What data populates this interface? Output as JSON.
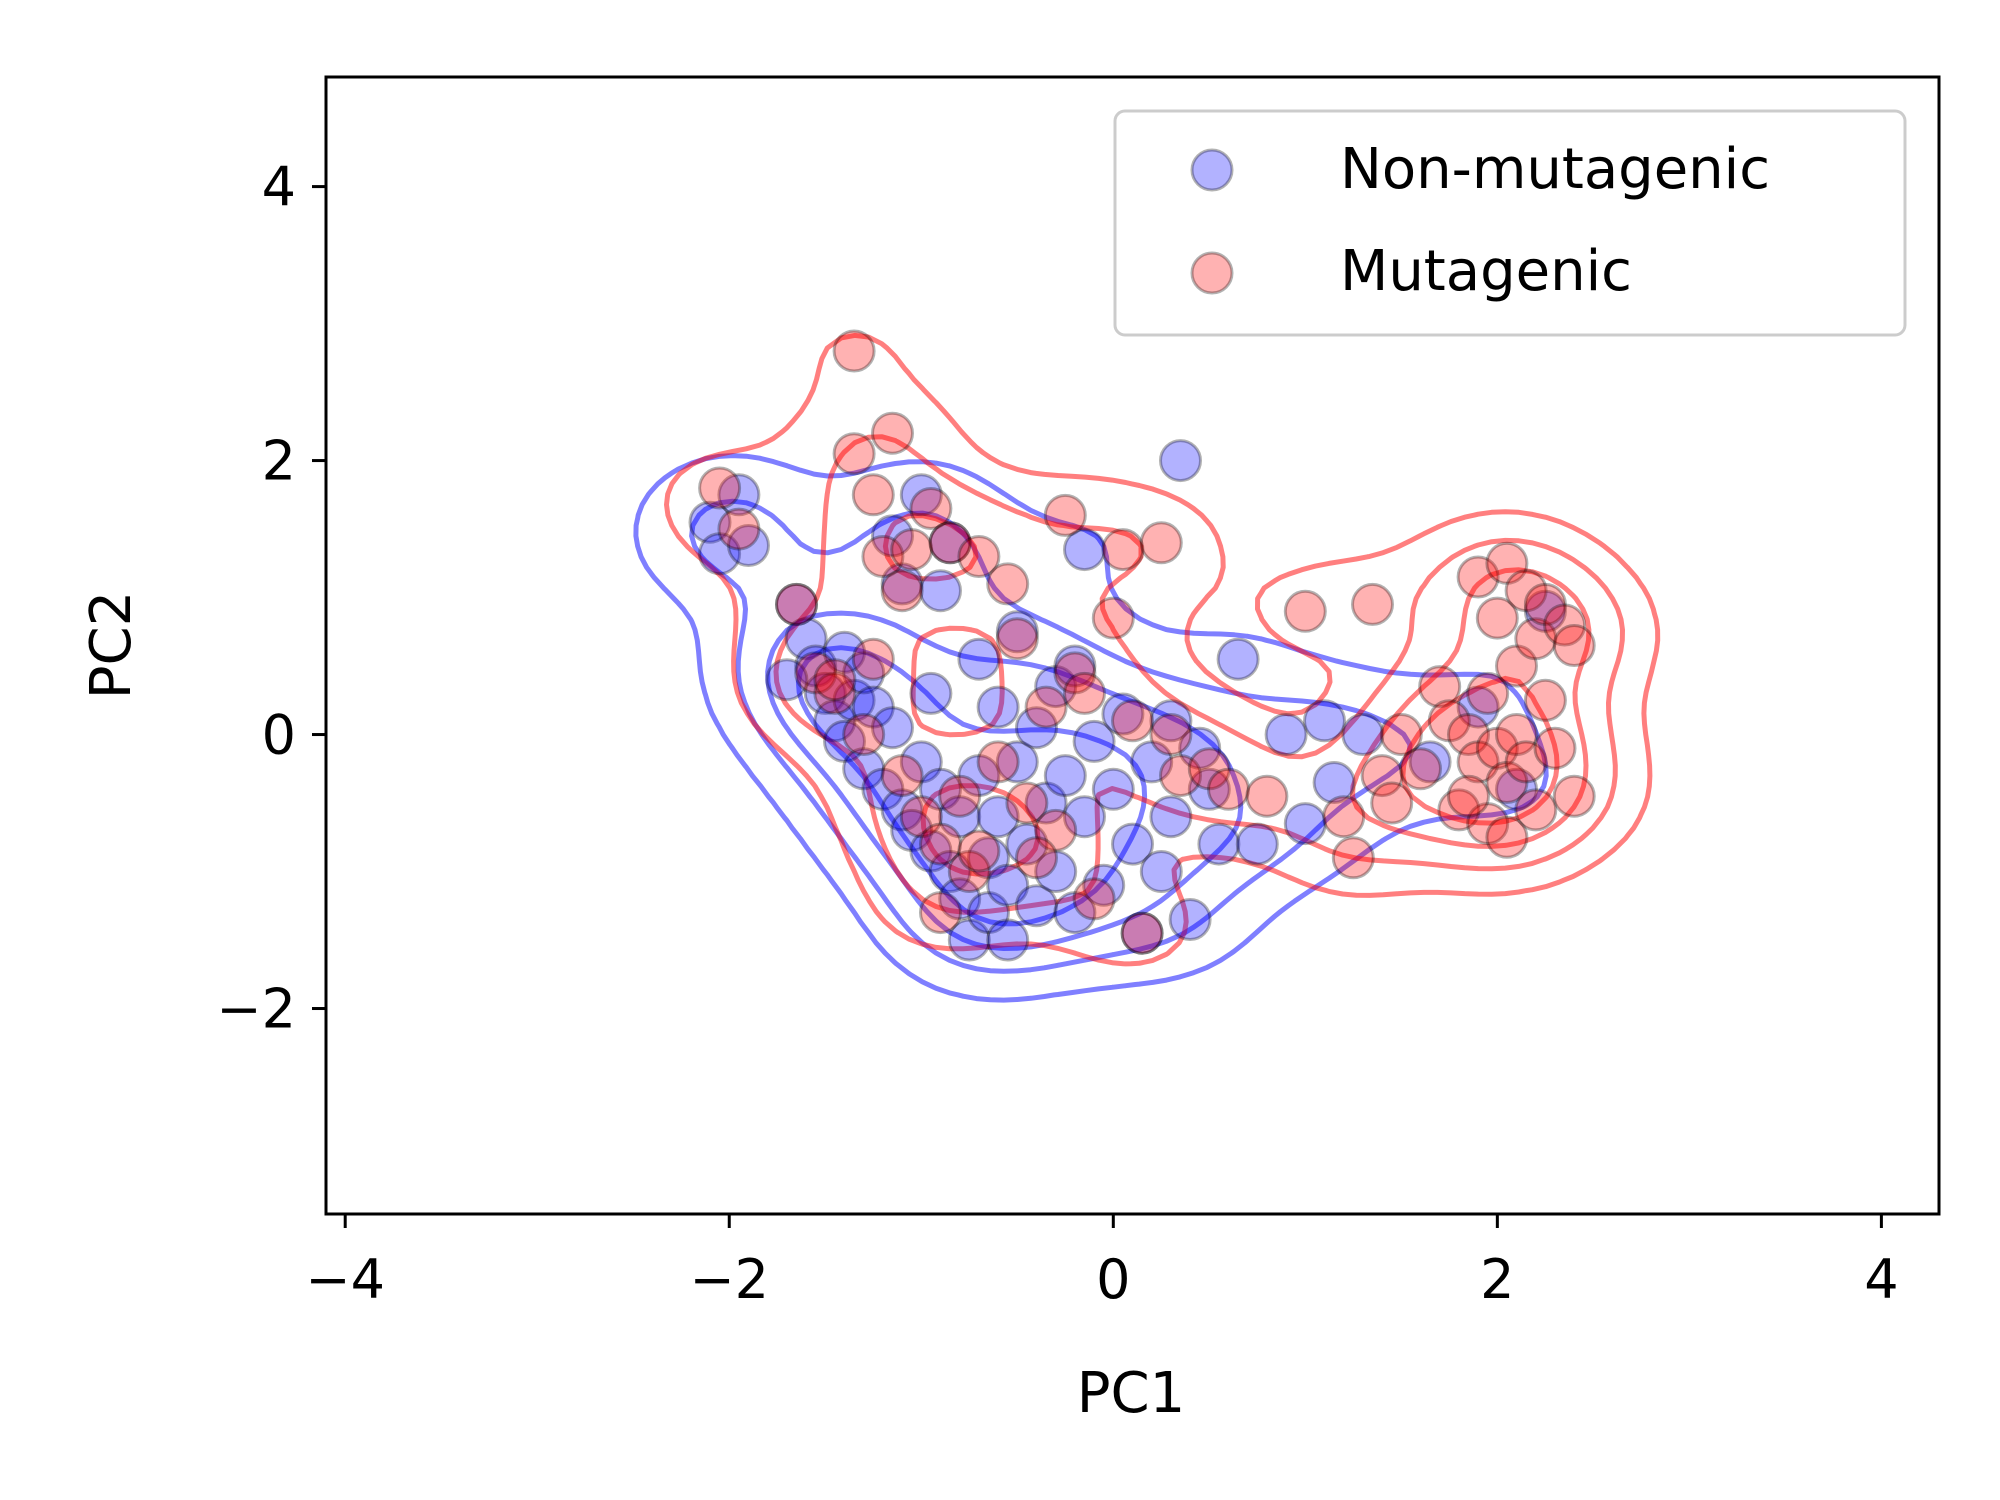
{
  "chart_data": {
    "type": "scatter",
    "title": "",
    "xlabel": "PC1",
    "ylabel": "PC2",
    "xlim": [
      -4.1,
      4.3
    ],
    "ylim": [
      -3.5,
      4.8
    ],
    "xticks": [
      -4,
      -2,
      0,
      2,
      4
    ],
    "yticks": [
      -2,
      0,
      2,
      4
    ],
    "xtick_labels": [
      "−4",
      "−2",
      "0",
      "2",
      "4"
    ],
    "ytick_labels": [
      "−2",
      "0",
      "2",
      "4"
    ],
    "grid": false,
    "legend_position": "top-right",
    "series": [
      {
        "name": "Non-mutagenic",
        "color": "#0000ff",
        "marker_alpha": 0.3,
        "points": [
          [
            -2.1,
            1.55
          ],
          [
            -2.05,
            1.32
          ],
          [
            -1.95,
            1.75
          ],
          [
            -1.9,
            1.38
          ],
          [
            -1.65,
            0.95
          ],
          [
            -1.6,
            0.7
          ],
          [
            -1.55,
            0.5
          ],
          [
            -1.5,
            0.3
          ],
          [
            -1.45,
            0.1
          ],
          [
            -1.4,
            0.6
          ],
          [
            -1.4,
            -0.05
          ],
          [
            -1.35,
            0.25
          ],
          [
            -1.3,
            0.45
          ],
          [
            -1.3,
            -0.25
          ],
          [
            -1.25,
            0.2
          ],
          [
            -1.2,
            -0.4
          ],
          [
            -1.15,
            0.05
          ],
          [
            -1.15,
            1.45
          ],
          [
            -1.1,
            -0.55
          ],
          [
            -1.1,
            1.1
          ],
          [
            -1.05,
            -0.7
          ],
          [
            -1.0,
            1.75
          ],
          [
            -1.0,
            -0.2
          ],
          [
            -0.95,
            -0.85
          ],
          [
            -0.9,
            1.05
          ],
          [
            -0.9,
            -0.4
          ],
          [
            -0.85,
            -1.0
          ],
          [
            -0.85,
            1.4
          ],
          [
            -0.8,
            -0.6
          ],
          [
            -0.8,
            -1.2
          ],
          [
            -0.75,
            -1.5
          ],
          [
            -0.7,
            -0.3
          ],
          [
            -0.7,
            0.55
          ],
          [
            -0.65,
            -0.9
          ],
          [
            -0.65,
            -1.3
          ],
          [
            -0.6,
            0.2
          ],
          [
            -0.6,
            -0.6
          ],
          [
            -0.55,
            -1.1
          ],
          [
            -0.5,
            -0.2
          ],
          [
            -0.5,
            0.75
          ],
          [
            -0.45,
            -0.8
          ],
          [
            -0.4,
            0.05
          ],
          [
            -0.4,
            -1.25
          ],
          [
            -0.35,
            -0.5
          ],
          [
            -0.3,
            0.35
          ],
          [
            -0.3,
            -1.0
          ],
          [
            -0.25,
            -0.3
          ],
          [
            -0.2,
            -1.3
          ],
          [
            -0.15,
            -0.6
          ],
          [
            -0.15,
            1.35
          ],
          [
            -0.1,
            -0.05
          ],
          [
            -0.05,
            -1.1
          ],
          [
            0.0,
            -0.4
          ],
          [
            0.05,
            0.15
          ],
          [
            0.1,
            -0.8
          ],
          [
            0.15,
            -1.45
          ],
          [
            0.2,
            -0.2
          ],
          [
            0.25,
            -1.0
          ],
          [
            0.3,
            0.1
          ],
          [
            0.3,
            -0.6
          ],
          [
            0.35,
            2.0
          ],
          [
            0.4,
            -1.35
          ],
          [
            0.45,
            -0.1
          ],
          [
            0.5,
            -0.4
          ],
          [
            0.55,
            -0.8
          ],
          [
            0.65,
            0.55
          ],
          [
            0.75,
            -0.8
          ],
          [
            0.9,
            0.0
          ],
          [
            1.0,
            -0.65
          ],
          [
            1.1,
            0.1
          ],
          [
            1.15,
            -0.35
          ],
          [
            1.3,
            0.0
          ],
          [
            1.65,
            -0.2
          ],
          [
            1.9,
            0.2
          ],
          [
            2.1,
            -0.4
          ],
          [
            2.25,
            0.9
          ],
          [
            -0.2,
            0.5
          ],
          [
            -0.95,
            0.3
          ],
          [
            -1.7,
            0.4
          ],
          [
            -0.55,
            -1.5
          ]
        ]
      },
      {
        "name": "Mutagenic",
        "color": "#ff0000",
        "marker_alpha": 0.3,
        "points": [
          [
            -2.05,
            1.8
          ],
          [
            -1.95,
            1.5
          ],
          [
            -1.65,
            0.95
          ],
          [
            -1.55,
            0.45
          ],
          [
            -1.45,
            0.3
          ],
          [
            -1.35,
            2.05
          ],
          [
            -1.35,
            2.8
          ],
          [
            -1.3,
            0.0
          ],
          [
            -1.25,
            1.75
          ],
          [
            -1.2,
            1.3
          ],
          [
            -1.15,
            2.2
          ],
          [
            -1.1,
            1.05
          ],
          [
            -1.1,
            -0.3
          ],
          [
            -1.05,
            1.35
          ],
          [
            -1.0,
            -0.6
          ],
          [
            -0.95,
            1.65
          ],
          [
            -0.9,
            -0.8
          ],
          [
            -0.85,
            1.4
          ],
          [
            -0.8,
            -0.45
          ],
          [
            -0.75,
            -1.0
          ],
          [
            -0.7,
            1.3
          ],
          [
            -0.7,
            -0.85
          ],
          [
            -0.6,
            -0.2
          ],
          [
            -0.55,
            1.1
          ],
          [
            -0.5,
            0.7
          ],
          [
            -0.45,
            -0.5
          ],
          [
            -0.35,
            0.2
          ],
          [
            -0.3,
            -0.7
          ],
          [
            -0.25,
            1.6
          ],
          [
            -0.2,
            0.45
          ],
          [
            -0.15,
            0.3
          ],
          [
            -0.1,
            -1.2
          ],
          [
            0.0,
            0.85
          ],
          [
            0.05,
            1.35
          ],
          [
            0.15,
            -1.45
          ],
          [
            0.25,
            1.4
          ],
          [
            0.3,
            0.0
          ],
          [
            0.35,
            -0.3
          ],
          [
            0.5,
            -0.25
          ],
          [
            0.6,
            -0.4
          ],
          [
            0.8,
            -0.45
          ],
          [
            1.0,
            0.9
          ],
          [
            1.2,
            -0.6
          ],
          [
            1.25,
            -0.9
          ],
          [
            1.35,
            0.95
          ],
          [
            1.4,
            -0.3
          ],
          [
            1.45,
            -0.5
          ],
          [
            1.5,
            0.0
          ],
          [
            1.6,
            -0.25
          ],
          [
            1.7,
            0.35
          ],
          [
            1.75,
            0.1
          ],
          [
            1.8,
            -0.55
          ],
          [
            1.85,
            0.0
          ],
          [
            1.9,
            -0.2
          ],
          [
            1.9,
            1.15
          ],
          [
            1.95,
            -0.65
          ],
          [
            1.95,
            0.3
          ],
          [
            2.0,
            0.85
          ],
          [
            2.0,
            -0.1
          ],
          [
            2.05,
            1.25
          ],
          [
            2.05,
            -0.35
          ],
          [
            2.1,
            0.5
          ],
          [
            2.1,
            0.0
          ],
          [
            2.15,
            -0.2
          ],
          [
            2.15,
            1.05
          ],
          [
            2.2,
            0.7
          ],
          [
            2.2,
            -0.55
          ],
          [
            2.25,
            0.25
          ],
          [
            2.25,
            0.95
          ],
          [
            2.3,
            -0.1
          ],
          [
            2.35,
            0.8
          ],
          [
            2.4,
            -0.45
          ],
          [
            2.4,
            0.65
          ],
          [
            2.05,
            -0.75
          ],
          [
            1.85,
            -0.45
          ],
          [
            -1.25,
            0.55
          ],
          [
            -0.9,
            -1.3
          ],
          [
            -0.4,
            -0.9
          ],
          [
            0.1,
            0.1
          ],
          [
            -1.45,
            0.4
          ]
        ]
      }
    ],
    "legend": {
      "entries": [
        "Non-mutagenic",
        "Mutagenic"
      ]
    }
  }
}
